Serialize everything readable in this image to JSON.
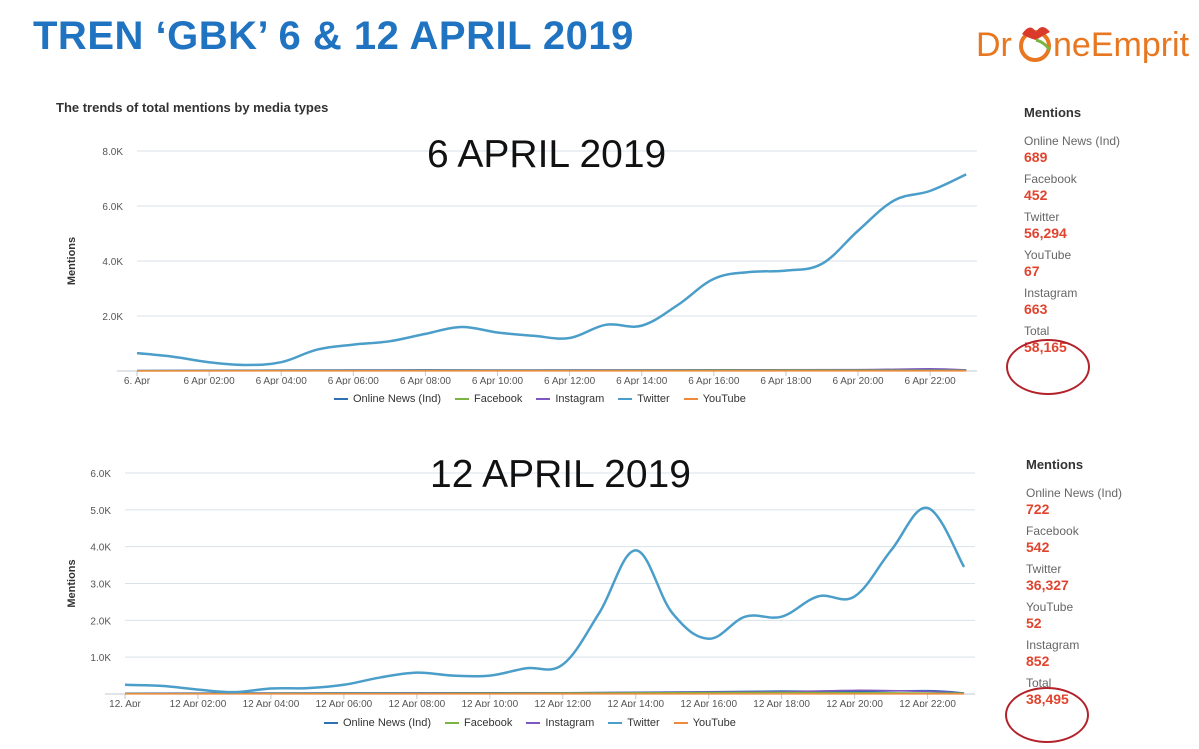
{
  "title": "TREN ‘GBK’ 6 & 12 APRIL 2019",
  "logo": {
    "part1": "Dr",
    "part2": "neEmprit",
    "icon": "drone-o-icon"
  },
  "chart_title": "The trends of total mentions by media types",
  "colors": {
    "twitter": "#4a9ec9",
    "online_news": "#2f6fb3",
    "facebook": "#7cb342",
    "instagram": "#7e57c2",
    "youtube": "#ef8a3c",
    "value_red": "#e0442f",
    "circle": "#b3222a"
  },
  "chart_data": [
    {
      "type": "line",
      "overlay_label": "6 APRIL 2019",
      "ylabel": "Mentions",
      "ylim": [
        0,
        8000
      ],
      "yticks": [
        2000,
        4000,
        6000,
        8000
      ],
      "ytick_labels": [
        "2.0K",
        "4.0K",
        "6.0K",
        "8.0K"
      ],
      "x_range": [
        0,
        23.3
      ],
      "xticks": [
        0,
        2,
        4,
        6,
        8,
        10,
        12,
        14,
        16,
        18,
        20,
        22
      ],
      "xtick_labels": [
        "6. Apr",
        "6 Apr 02:00",
        "6 Apr 04:00",
        "6 Apr 06:00",
        "6 Apr 08:00",
        "6 Apr 10:00",
        "6 Apr 12:00",
        "6 Apr 14:00",
        "6 Apr 16:00",
        "6 Apr 18:00",
        "6 Apr 20:00",
        "6 Apr 22:00"
      ],
      "grid": true,
      "legend": [
        "Online News (Ind)",
        "Facebook",
        "Instagram",
        "Twitter",
        "YouTube"
      ],
      "series": [
        {
          "name": "Twitter",
          "x": [
            0,
            1,
            2,
            3,
            4,
            5,
            6,
            7,
            8,
            9,
            10,
            11,
            12,
            13,
            14,
            15,
            16,
            17,
            18,
            19,
            20,
            21,
            22,
            23
          ],
          "values": [
            650,
            520,
            320,
            220,
            320,
            780,
            960,
            1080,
            1350,
            1600,
            1400,
            1280,
            1200,
            1680,
            1650,
            2400,
            3350,
            3600,
            3650,
            3900,
            5100,
            6200,
            6550,
            7150
          ]
        },
        {
          "name": "Online News (Ind)",
          "x": [
            0,
            4,
            8,
            12,
            16,
            20,
            23
          ],
          "values": [
            20,
            30,
            40,
            35,
            40,
            45,
            40
          ]
        },
        {
          "name": "Instagram",
          "x": [
            0,
            4,
            8,
            12,
            16,
            20,
            22,
            23
          ],
          "values": [
            10,
            15,
            25,
            30,
            40,
            50,
            80,
            40
          ]
        },
        {
          "name": "Facebook",
          "x": [
            0,
            6,
            12,
            18,
            23
          ],
          "values": [
            10,
            15,
            20,
            30,
            25
          ]
        },
        {
          "name": "YouTube",
          "x": [
            0,
            12,
            23
          ],
          "values": [
            2,
            4,
            3
          ]
        }
      ],
      "side_panel": {
        "heading": "Mentions",
        "entries": [
          {
            "name": "Online News (Ind)",
            "value": "689"
          },
          {
            "name": "Facebook",
            "value": "452"
          },
          {
            "name": "Twitter",
            "value": "56,294"
          },
          {
            "name": "YouTube",
            "value": "67"
          },
          {
            "name": "Instagram",
            "value": "663"
          },
          {
            "name": "Total",
            "value": "58,165"
          }
        ]
      }
    },
    {
      "type": "line",
      "overlay_label": "12 APRIL 2019",
      "ylabel": "Mentions",
      "ylim": [
        0,
        6000
      ],
      "yticks": [
        1000,
        2000,
        3000,
        4000,
        5000,
        6000
      ],
      "ytick_labels": [
        "1.0K",
        "2.0K",
        "3.0K",
        "4.0K",
        "5.0K",
        "6.0K"
      ],
      "x_range": [
        0,
        23.3
      ],
      "xticks": [
        0,
        2,
        4,
        6,
        8,
        10,
        12,
        14,
        16,
        18,
        20,
        22
      ],
      "xtick_labels": [
        "12. Apr",
        "12 Apr 02:00",
        "12 Apr 04:00",
        "12 Apr 06:00",
        "12 Apr 08:00",
        "12 Apr 10:00",
        "12 Apr 12:00",
        "12 Apr 14:00",
        "12 Apr 16:00",
        "12 Apr 18:00",
        "12 Apr 20:00",
        "12 Apr 22:00"
      ],
      "grid": true,
      "legend": [
        "Online News (Ind)",
        "Facebook",
        "Instagram",
        "Twitter",
        "YouTube"
      ],
      "series": [
        {
          "name": "Twitter",
          "x": [
            0,
            1,
            2,
            3,
            4,
            5,
            6,
            7,
            8,
            9,
            10,
            11,
            12,
            13,
            14,
            15,
            16,
            17,
            18,
            19,
            20,
            21,
            22,
            23
          ],
          "values": [
            250,
            220,
            120,
            50,
            150,
            160,
            250,
            450,
            580,
            500,
            500,
            700,
            800,
            2200,
            3900,
            2200,
            1500,
            2100,
            2100,
            2650,
            2650,
            3900,
            5050,
            3450
          ]
        },
        {
          "name": "Online News (Ind)",
          "x": [
            0,
            6,
            12,
            16,
            18,
            20,
            22,
            23
          ],
          "values": [
            20,
            30,
            35,
            60,
            80,
            70,
            90,
            30
          ]
        },
        {
          "name": "Instagram",
          "x": [
            0,
            8,
            14,
            18,
            20,
            22,
            23
          ],
          "values": [
            10,
            20,
            40,
            60,
            100,
            70,
            20
          ]
        },
        {
          "name": "Facebook",
          "x": [
            0,
            8,
            14,
            18,
            23
          ],
          "values": [
            10,
            15,
            30,
            40,
            20
          ]
        },
        {
          "name": "YouTube",
          "x": [
            0,
            12,
            23
          ],
          "values": [
            2,
            4,
            3
          ]
        }
      ],
      "side_panel": {
        "heading": "Mentions",
        "entries": [
          {
            "name": "Online News (Ind)",
            "value": "722"
          },
          {
            "name": "Facebook",
            "value": "542"
          },
          {
            "name": "Twitter",
            "value": "36,327"
          },
          {
            "name": "YouTube",
            "value": "52"
          },
          {
            "name": "Instagram",
            "value": "852"
          },
          {
            "name": "Total",
            "value": "38,495"
          }
        ]
      }
    }
  ]
}
